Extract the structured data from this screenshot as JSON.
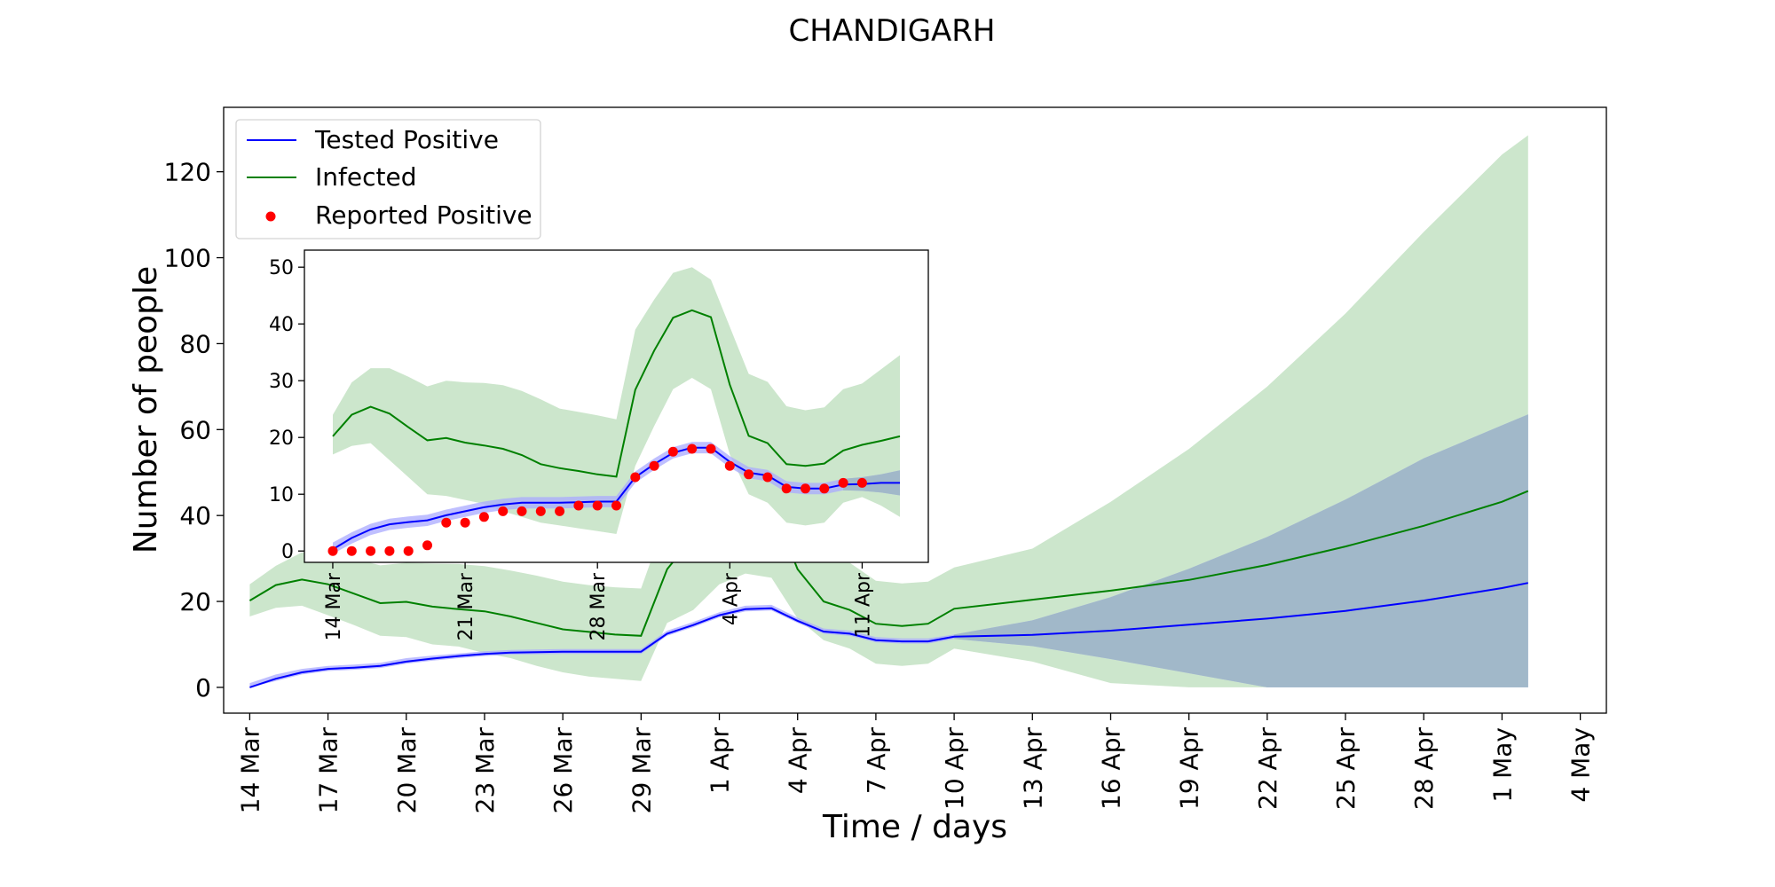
{
  "chart_data": {
    "type": "line",
    "title": "CHANDIGARH",
    "xlabel": "Time / days",
    "ylabel": "Number of people",
    "x_start": "2020-03-14",
    "x_axis_range": [
      "2020-03-13",
      "2020-05-05"
    ],
    "ylim": [
      -6,
      135
    ],
    "x_ticks": [
      "14 Mar",
      "17 Mar",
      "20 Mar",
      "23 Mar",
      "26 Mar",
      "29 Mar",
      "1 Apr",
      "4 Apr",
      "7 Apr",
      "10 Apr",
      "13 Apr",
      "16 Apr",
      "19 Apr",
      "22 Apr",
      "25 Apr",
      "28 Apr",
      "1 May",
      "4 May"
    ],
    "y_ticks": [
      0,
      20,
      40,
      60,
      80,
      100,
      120
    ],
    "grid": false,
    "legend_position": "top-left",
    "legend": [
      "Tested Positive",
      "Infected",
      "Reported Positive"
    ],
    "colors": {
      "tested": "#0000ff",
      "tested_band": "#aaaaff",
      "infected": "#008000",
      "infected_band": "#cce6cc",
      "overlap_band": "#a1b8c9",
      "reported": "#ff0000"
    },
    "series": [
      {
        "name": "Tested Positive",
        "x_dates": [
          "2020-03-14",
          "2020-03-15",
          "2020-03-16",
          "2020-03-17",
          "2020-03-18",
          "2020-03-19",
          "2020-03-20",
          "2020-03-21",
          "2020-03-22",
          "2020-03-23",
          "2020-03-24",
          "2020-03-25",
          "2020-03-26",
          "2020-03-27",
          "2020-03-28",
          "2020-03-29",
          "2020-03-30",
          "2020-03-31",
          "2020-04-01",
          "2020-04-02",
          "2020-04-03",
          "2020-04-04",
          "2020-04-05",
          "2020-04-06",
          "2020-04-07",
          "2020-04-08",
          "2020-04-09",
          "2020-04-10",
          "2020-04-13",
          "2020-04-16",
          "2020-04-19",
          "2020-04-22",
          "2020-04-25",
          "2020-04-28",
          "2020-05-01",
          "2020-05-02"
        ],
        "values": [
          0,
          2,
          3.5,
          4.3,
          4.6,
          5,
          6,
          6.7,
          7.3,
          7.8,
          8.1,
          8.2,
          8.3,
          8.3,
          8.3,
          8.3,
          12.5,
          14.5,
          16.8,
          18.2,
          18.4,
          15.5,
          13,
          12.5,
          11,
          10.7,
          10.7,
          11.8,
          12.2,
          13.2,
          14.6,
          16,
          17.8,
          20.2,
          23.1,
          24.3
        ],
        "lower": [
          0,
          1.5,
          3,
          3.8,
          4.1,
          4.5,
          5.5,
          6.2,
          6.8,
          7.3,
          7.6,
          7.7,
          7.8,
          7.8,
          7.8,
          7.8,
          12,
          14,
          16.3,
          17.7,
          17.9,
          15,
          12.5,
          12,
          10.5,
          10.2,
          10.2,
          11.3,
          9.6,
          6.6,
          3.3,
          0,
          0,
          0,
          0,
          0
        ],
        "upper": [
          1,
          3,
          4.3,
          5,
          5.3,
          5.7,
          6.8,
          7.4,
          7.9,
          8.4,
          8.7,
          8.8,
          8.9,
          8.9,
          8.9,
          8.9,
          13.2,
          15.2,
          17.5,
          19,
          19.2,
          16.2,
          13.7,
          13.2,
          11.7,
          11.4,
          11.4,
          12.3,
          15.6,
          21,
          27.6,
          35,
          43.7,
          53.3,
          61,
          63.5
        ]
      },
      {
        "name": "Infected",
        "x_dates": [
          "2020-03-14",
          "2020-03-15",
          "2020-03-16",
          "2020-03-17",
          "2020-03-18",
          "2020-03-19",
          "2020-03-20",
          "2020-03-21",
          "2020-03-22",
          "2020-03-23",
          "2020-03-24",
          "2020-03-25",
          "2020-03-26",
          "2020-03-27",
          "2020-03-28",
          "2020-03-29",
          "2020-03-30",
          "2020-03-31",
          "2020-04-01",
          "2020-04-02",
          "2020-04-03",
          "2020-04-04",
          "2020-04-05",
          "2020-04-06",
          "2020-04-07",
          "2020-04-08",
          "2020-04-09",
          "2020-04-10",
          "2020-04-13",
          "2020-04-16",
          "2020-04-19",
          "2020-04-22",
          "2020-04-25",
          "2020-04-28",
          "2020-05-01",
          "2020-05-02"
        ],
        "values": [
          20.2,
          23.8,
          25.1,
          24,
          21.8,
          19.6,
          19.9,
          18.8,
          18.2,
          17.7,
          16.5,
          15,
          13.5,
          12.9,
          12.3,
          12,
          27.5,
          35,
          42,
          43.8,
          42.5,
          27.5,
          20,
          18,
          14.8,
          14.3,
          14.8,
          18.3,
          20.4,
          22.5,
          25,
          28.5,
          32.8,
          37.6,
          43.2,
          45.7
        ],
        "lower": [
          16.5,
          18.5,
          19,
          16.8,
          14.5,
          12,
          11.7,
          10,
          9.5,
          8,
          6.8,
          5,
          3.5,
          2.5,
          2,
          1.5,
          15,
          18,
          24,
          26.5,
          25.5,
          16,
          11,
          9,
          5.5,
          5,
          5.5,
          9,
          6,
          1,
          0,
          0,
          0,
          0,
          0,
          0
        ],
        "upper": [
          24,
          28.3,
          31.4,
          31.3,
          30,
          28.4,
          29,
          28.8,
          28.7,
          28.2,
          27.2,
          26,
          24.6,
          23.8,
          23.3,
          23,
          40,
          46,
          52.5,
          54,
          52,
          40,
          30,
          29,
          24.8,
          24.2,
          24.6,
          27.9,
          32.3,
          43.2,
          55.5,
          70,
          87,
          106,
          124,
          128.5
        ]
      }
    ],
    "inset": {
      "type": "scatter+line",
      "ylim": [
        -2,
        53
      ],
      "y_ticks": [
        0,
        10,
        20,
        30,
        40,
        50
      ],
      "x_ticks": [
        "14 Mar",
        "21 Mar",
        "28 Mar",
        "4 Apr",
        "11 Apr"
      ],
      "x_dates": [
        "2020-03-14",
        "2020-03-15",
        "2020-03-16",
        "2020-03-17",
        "2020-03-18",
        "2020-03-19",
        "2020-03-20",
        "2020-03-21",
        "2020-03-22",
        "2020-03-23",
        "2020-03-24",
        "2020-03-25",
        "2020-03-26",
        "2020-03-27",
        "2020-03-28",
        "2020-03-29",
        "2020-03-30",
        "2020-03-31",
        "2020-04-01",
        "2020-04-02",
        "2020-04-03",
        "2020-04-04",
        "2020-04-05",
        "2020-04-06",
        "2020-04-07",
        "2020-04-08",
        "2020-04-09",
        "2020-04-10",
        "2020-04-11",
        "2020-04-12",
        "2020-04-13",
        "2020-04-14",
        "2020-04-15"
      ],
      "reported_positive": [
        0,
        0,
        0,
        0,
        0,
        1,
        5,
        5,
        6,
        7,
        7,
        7,
        7,
        8,
        8,
        8,
        13,
        15,
        17.5,
        18,
        18,
        15,
        13.5,
        13,
        11,
        11,
        11,
        12,
        12,
        null,
        null,
        null,
        null
      ],
      "tested_positive": [
        0.3,
        2.3,
        3.8,
        4.7,
        5.1,
        5.4,
        6.3,
        7,
        7.7,
        8.2,
        8.5,
        8.5,
        8.5,
        8.6,
        8.7,
        8.7,
        13,
        15.3,
        17.3,
        18.2,
        18.2,
        15.7,
        13.8,
        13.3,
        11.3,
        11,
        11,
        11.7,
        11.8,
        12,
        12,
        12.2,
        12.2
      ],
      "tested_lower": [
        -0.5,
        1.3,
        2.8,
        3.7,
        4.1,
        4.4,
        5.3,
        6,
        6.7,
        7.2,
        7.5,
        7.5,
        7.5,
        7.6,
        7.7,
        7.7,
        12,
        14.3,
        16.3,
        17.2,
        17.2,
        14.7,
        12.8,
        12.3,
        10.3,
        10,
        10,
        10.7,
        10.6,
        10.3,
        9.8,
        9.4,
        8.9
      ],
      "tested_upper": [
        1.5,
        3.3,
        4.8,
        5.7,
        6.1,
        6.4,
        7.3,
        8,
        8.7,
        9.2,
        9.5,
        9.5,
        9.5,
        9.6,
        9.7,
        9.7,
        14,
        16.3,
        18.3,
        19.2,
        19.2,
        16.7,
        14.8,
        14.3,
        12.3,
        12,
        12,
        12.7,
        13,
        13.5,
        14.2,
        15,
        15.8
      ],
      "infected": [
        20.2,
        24,
        25.4,
        24.2,
        21.8,
        19.5,
        19.9,
        19.1,
        18.6,
        18,
        16.9,
        15.3,
        14.6,
        14.1,
        13.5,
        13.1,
        28.4,
        35.3,
        41.1,
        42.4,
        41.2,
        29.3,
        20.3,
        19,
        15.3,
        15,
        15.4,
        17.7,
        18.7,
        19.4,
        20.2,
        20.8,
        20.7
      ],
      "infected_lower": [
        17,
        18.5,
        19,
        16,
        13,
        10,
        9.7,
        9,
        8.3,
        7,
        6,
        5,
        4.5,
        4,
        3.5,
        3,
        15,
        22,
        28.5,
        30.5,
        28.5,
        17,
        10,
        8.5,
        5,
        4.5,
        5,
        8.5,
        9.5,
        8,
        6,
        4,
        2
      ],
      "infected_upper": [
        24,
        29.7,
        32.2,
        32.2,
        30.7,
        29,
        30,
        29.7,
        29.6,
        29.2,
        28.2,
        26.7,
        25.1,
        24.5,
        23.9,
        23.2,
        39,
        44.3,
        49,
        50,
        47.8,
        39.5,
        31.2,
        29.8,
        25.5,
        24.8,
        25.3,
        28.5,
        29.5,
        32,
        34.5,
        35.5,
        35.5
      ]
    }
  }
}
